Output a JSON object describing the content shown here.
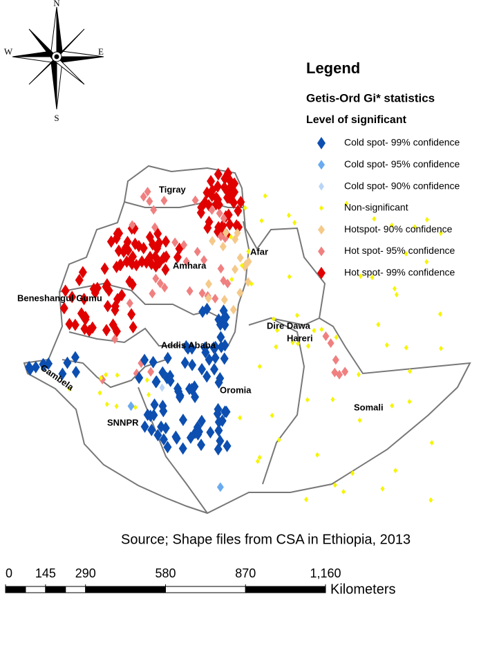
{
  "compass": {
    "n": "N",
    "s": "S",
    "e": "E",
    "w": "W"
  },
  "legend": {
    "title": "Legend",
    "subtitle": "Getis-Ord Gi* statistics",
    "heading": "Level of significant",
    "items": [
      {
        "label": "Cold spot- 99% confidence",
        "color": "#0d4fb0"
      },
      {
        "label": "Cold spot- 95% confidence",
        "color": "#6aaaf0"
      },
      {
        "label": "Cold spot- 90% confidence",
        "color": "#b9d4f7"
      },
      {
        "label": "Non-significant",
        "color": "#f5f500"
      },
      {
        "label": "Hotspot- 90% confidence",
        "color": "#f5c98a"
      },
      {
        "label": "Hot spot- 95% confidence",
        "color": "#f08080"
      },
      {
        "label": "Hot spot- 99% confidence",
        "color": "#e00000"
      }
    ]
  },
  "regions": [
    "Tigray",
    "Afar",
    "Amhara",
    "Beneshangul Gumu",
    "Dire Dawa",
    "Hareri",
    "Addis Ababa",
    "Oromia",
    "Gambela",
    "SNNPR",
    "Somali"
  ],
  "source": "Source; Shape files from CSA in Ethiopia, 2013",
  "scale": {
    "ticks": [
      0,
      145,
      290,
      580,
      870,
      {
        "value": 1160,
        "label": "1,160"
      }
    ],
    "unit": "Kilometers"
  }
}
